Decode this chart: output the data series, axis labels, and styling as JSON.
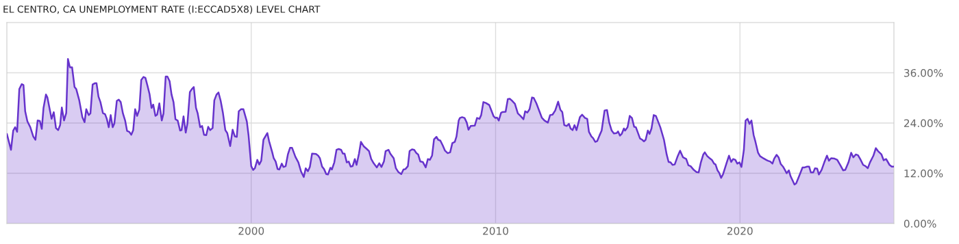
{
  "chart_data": {
    "type": "area",
    "title": "EL CENTRO, CA UNEMPLOYMENT RATE (I:ECCAD5X8) LEVEL CHART",
    "x": [
      1990.0,
      1990.17,
      1990.26,
      1990.34,
      1990.42,
      1990.51,
      1990.61,
      1990.68,
      1990.75,
      1990.84,
      1990.96,
      1991.08,
      1991.17,
      1991.26,
      1991.35,
      1991.43,
      1991.5,
      1991.6,
      1991.66,
      1991.76,
      1991.83,
      1991.92,
      1992.01,
      1992.1,
      1992.18,
      1992.25,
      1992.34,
      1992.43,
      1992.5,
      1992.58,
      1992.67,
      1992.77,
      1992.84,
      1992.96,
      1993.09,
      1993.18,
      1993.25,
      1993.35,
      1993.42,
      1993.51,
      1993.6,
      1993.67,
      1993.75,
      1993.83,
      1993.93,
      1994.02,
      1994.09,
      1994.17,
      1994.25,
      1994.33,
      1994.4,
      1994.5,
      1994.58,
      1994.66,
      1994.75,
      1994.84,
      1994.92,
      1995.01,
      1995.09,
      1995.17,
      1995.25,
      1995.33,
      1995.42,
      1995.5,
      1995.59,
      1995.67,
      1995.76,
      1995.84,
      1995.92,
      1995.99,
      1996.08,
      1996.15,
      1996.24,
      1996.34,
      1996.41,
      1996.5,
      1996.57,
      1996.66,
      1996.74,
      1996.82,
      1996.9,
      1996.99,
      1997.09,
      1997.15,
      1997.23,
      1997.32,
      1997.39,
      1997.49,
      1997.57,
      1997.65,
      1997.74,
      1997.81,
      1997.91,
      1997.99,
      1998.07,
      1998.16,
      1998.24,
      1998.32,
      1998.42,
      1998.49,
      1998.58,
      1998.66,
      1998.75,
      1998.84,
      1998.94,
      1999.02,
      1999.14,
      1999.24,
      1999.33,
      1999.41,
      1999.49,
      1999.58,
      1999.68,
      1999.82,
      1999.89,
      2000.0,
      2000.08,
      2000.15,
      2000.25,
      2000.33,
      2000.41,
      2000.5,
      2000.66,
      2000.73,
      2000.86,
      2000.92,
      2001.0,
      2001.08,
      2001.15,
      2001.25,
      2001.32,
      2001.41,
      2001.5,
      2001.59,
      2001.67,
      2001.81,
      2001.93,
      2002.04,
      2002.15,
      2002.23,
      2002.32,
      2002.4,
      2002.49,
      2002.65,
      2002.74,
      2002.81,
      2002.9,
      2002.98,
      2003.07,
      2003.14,
      2003.24,
      2003.3,
      2003.4,
      2003.49,
      2003.58,
      2003.68,
      2003.75,
      2003.82,
      2003.91,
      2003.99,
      2004.07,
      2004.15,
      2004.24,
      2004.31,
      2004.41,
      2004.49,
      2004.61,
      2004.73,
      2004.82,
      2004.91,
      2005.01,
      2005.14,
      2005.24,
      2005.33,
      2005.43,
      2005.5,
      2005.62,
      2005.69,
      2005.83,
      2005.92,
      2006.02,
      2006.14,
      2006.23,
      2006.31,
      2006.41,
      2006.48,
      2006.58,
      2006.67,
      2006.76,
      2006.83,
      2006.92,
      2007.02,
      2007.14,
      2007.23,
      2007.31,
      2007.4,
      2007.48,
      2007.58,
      2007.65,
      2007.74,
      2007.84,
      2007.93,
      2008.04,
      2008.14,
      2008.23,
      2008.33,
      2008.4,
      2008.49,
      2008.54,
      2008.63,
      2008.73,
      2008.82,
      2008.89,
      2008.98,
      2009.15,
      2009.24,
      2009.34,
      2009.41,
      2009.5,
      2009.6,
      2009.74,
      2009.82,
      2009.92,
      2009.99,
      2010.06,
      2010.13,
      2010.22,
      2010.27,
      2010.41,
      2010.5,
      2010.58,
      2010.66,
      2010.79,
      2010.91,
      2011.02,
      2011.14,
      2011.21,
      2011.3,
      2011.39,
      2011.49,
      2011.56,
      2011.67,
      2011.76,
      2011.89,
      2012.0,
      2012.14,
      2012.23,
      2012.33,
      2012.44,
      2012.56,
      2012.65,
      2012.73,
      2012.81,
      2012.91,
      2013.0,
      2013.07,
      2013.15,
      2013.23,
      2013.31,
      2013.45,
      2013.54,
      2013.66,
      2013.75,
      2013.82,
      2013.92,
      2013.99,
      2014.08,
      2014.16,
      2014.25,
      2014.34,
      2014.46,
      2014.56,
      2014.65,
      2014.75,
      2014.84,
      2014.95,
      2015.01,
      2015.09,
      2015.16,
      2015.25,
      2015.3,
      2015.4,
      2015.49,
      2015.58,
      2015.67,
      2015.74,
      2015.91,
      2016.0,
      2016.07,
      2016.14,
      2016.23,
      2016.3,
      2016.38,
      2016.47,
      2016.56,
      2016.74,
      2016.89,
      2017.0,
      2017.08,
      2017.16,
      2017.24,
      2017.33,
      2017.44,
      2017.55,
      2017.67,
      2017.8,
      2017.89,
      2017.98,
      2018.11,
      2018.22,
      2018.31,
      2018.4,
      2018.5,
      2018.56,
      2018.66,
      2018.76,
      2018.85,
      2018.94,
      2019.0,
      2019.08,
      2019.15,
      2019.23,
      2019.31,
      2019.46,
      2019.55,
      2019.64,
      2019.72,
      2019.81,
      2019.89,
      2019.98,
      2020.06,
      2020.16,
      2020.23,
      2020.31,
      2020.39,
      2020.47,
      2020.56,
      2020.63,
      2020.74,
      2020.82,
      2020.95,
      2021.07,
      2021.14,
      2021.24,
      2021.33,
      2021.4,
      2021.5,
      2021.58,
      2021.67,
      2021.76,
      2021.84,
      2021.91,
      2022.0,
      2022.07,
      2022.16,
      2022.23,
      2022.3,
      2022.42,
      2022.56,
      2022.65,
      2022.75,
      2022.83,
      2022.9,
      2023.0,
      2023.07,
      2023.16,
      2023.23,
      2023.34,
      2023.45,
      2023.56,
      2023.64,
      2023.73,
      2023.87,
      2023.98,
      2024.11,
      2024.22,
      2024.31,
      2024.44,
      2024.55,
      2024.64,
      2024.74,
      2024.83,
      2024.92,
      2025.04,
      2025.14,
      2025.23,
      2025.32,
      2025.46,
      2025.56,
      2025.65,
      2025.79,
      2025.88,
      2025.98,
      2026.12,
      2026.21,
      2026.3
    ],
    "values": [
      21.4,
      17.6,
      22.2,
      23.0,
      21.9,
      32.1,
      33.3,
      33.1,
      26.8,
      24.4,
      23.0,
      20.8,
      20.0,
      24.6,
      24.5,
      22.6,
      27.6,
      30.8,
      30.1,
      27.1,
      25.0,
      26.6,
      22.8,
      22.3,
      23.5,
      27.7,
      24.6,
      26.4,
      39.3,
      37.3,
      37.3,
      32.6,
      32.1,
      29.5,
      25.4,
      24.2,
      27.3,
      25.9,
      26.3,
      33.2,
      33.5,
      33.5,
      30.3,
      29.0,
      26.4,
      26.1,
      25.0,
      23.0,
      25.9,
      23.0,
      23.9,
      29.3,
      29.6,
      29.0,
      26.3,
      24.6,
      22.1,
      21.9,
      21.2,
      22.3,
      27.3,
      25.7,
      27.2,
      34.3,
      35.0,
      34.8,
      32.8,
      30.9,
      27.6,
      28.4,
      25.7,
      26.0,
      28.7,
      24.6,
      26.3,
      35.1,
      35.1,
      34.0,
      30.8,
      29.0,
      24.9,
      24.6,
      22.2,
      22.3,
      25.6,
      21.7,
      23.9,
      31.4,
      32.1,
      32.6,
      27.6,
      26.3,
      23.0,
      23.3,
      21.2,
      21.1,
      23.1,
      22.3,
      22.8,
      29.4,
      30.8,
      31.3,
      29.3,
      26.5,
      22.3,
      21.6,
      18.5,
      22.4,
      20.8,
      20.7,
      26.8,
      27.3,
      27.3,
      24.4,
      21.1,
      13.7,
      12.8,
      13.2,
      15.2,
      14.1,
      15.0,
      20.0,
      21.6,
      19.7,
      17.0,
      15.6,
      14.8,
      13.0,
      12.9,
      14.3,
      13.5,
      13.7,
      16.5,
      18.1,
      18.1,
      15.9,
      14.6,
      12.4,
      11.1,
      13.2,
      12.5,
      13.5,
      16.7,
      16.6,
      16.2,
      15.6,
      13.6,
      13.0,
      11.8,
      11.7,
      13.3,
      12.9,
      14.6,
      17.6,
      17.8,
      17.6,
      16.7,
      16.7,
      14.6,
      14.8,
      13.6,
      13.7,
      15.4,
      14.0,
      16.7,
      19.5,
      18.4,
      17.8,
      17.3,
      15.4,
      14.4,
      13.4,
      14.4,
      13.5,
      14.8,
      17.3,
      17.6,
      16.7,
      15.6,
      13.2,
      12.3,
      11.8,
      12.9,
      13.0,
      13.7,
      17.3,
      17.7,
      17.6,
      16.8,
      16.5,
      14.8,
      14.7,
      13.4,
      15.4,
      15.2,
      16.2,
      20.1,
      20.7,
      20.0,
      19.8,
      18.6,
      17.4,
      16.8,
      17.0,
      19.2,
      19.5,
      20.8,
      24.6,
      25.2,
      25.4,
      25.2,
      24.1,
      22.4,
      23.3,
      23.4,
      25.2,
      25.0,
      25.9,
      29.0,
      28.8,
      28.3,
      27.1,
      25.6,
      25.2,
      25.3,
      24.6,
      26.4,
      26.6,
      26.7,
      29.7,
      29.8,
      29.4,
      28.6,
      26.3,
      25.7,
      24.9,
      26.8,
      26.5,
      27.3,
      30.1,
      30.0,
      28.7,
      27.3,
      25.3,
      24.6,
      24.1,
      25.9,
      26.0,
      27.0,
      29.1,
      27.2,
      26.6,
      23.5,
      23.3,
      23.8,
      22.7,
      22.3,
      23.5,
      22.3,
      25.4,
      26.0,
      25.2,
      25.0,
      21.9,
      20.8,
      20.4,
      19.5,
      19.7,
      21.0,
      22.2,
      27.0,
      27.1,
      24.1,
      22.2,
      21.5,
      21.6,
      22.0,
      21.0,
      21.4,
      22.7,
      22.2,
      23.0,
      25.7,
      25.2,
      23.1,
      23.0,
      20.3,
      20.0,
      19.6,
      20.0,
      22.2,
      21.4,
      22.7,
      25.9,
      25.7,
      23.0,
      20.0,
      16.5,
      14.7,
      14.6,
      14.0,
      14.1,
      15.9,
      17.4,
      15.8,
      15.4,
      13.9,
      13.7,
      12.8,
      12.3,
      12.2,
      14.6,
      16.5,
      17.0,
      16.1,
      15.6,
      15.2,
      14.3,
      14.1,
      12.7,
      12.1,
      10.9,
      11.8,
      14.6,
      16.2,
      14.7,
      15.4,
      15.2,
      14.3,
      14.6,
      13.5,
      17.6,
      24.6,
      25.0,
      23.8,
      24.6,
      21.1,
      19.6,
      16.9,
      16.1,
      15.6,
      15.2,
      15.0,
      14.8,
      14.3,
      15.5,
      16.4,
      15.8,
      14.2,
      13.6,
      12.8,
      12.0,
      12.7,
      11.3,
      10.2,
      9.3,
      9.6,
      11.3,
      13.4,
      13.4,
      13.6,
      13.6,
      12.2,
      12.2,
      13.2,
      13.1,
      11.7,
      12.8,
      14.6,
      16.2,
      15.0,
      15.6,
      15.5,
      15.2,
      13.9,
      12.7,
      12.8,
      14.6,
      16.9,
      15.8,
      16.5,
      16.3,
      15.4,
      14.0,
      13.7,
      13.2,
      14.6,
      16.2,
      18.0,
      17.3,
      16.5,
      15.1,
      15.4,
      14.0,
      13.6,
      13.6
    ],
    "color": "#6633cc",
    "xlim": [
      1990.0,
      2026.3
    ],
    "ylim": [
      0,
      48
    ],
    "xticks": [
      2000,
      2010,
      2020
    ],
    "yticks": [
      {
        "value": 0,
        "label": "0.00%"
      },
      {
        "value": 12,
        "label": "12.00%"
      },
      {
        "value": 24,
        "label": "24.00%"
      },
      {
        "value": 36,
        "label": "36.00%"
      }
    ],
    "grid": true
  }
}
